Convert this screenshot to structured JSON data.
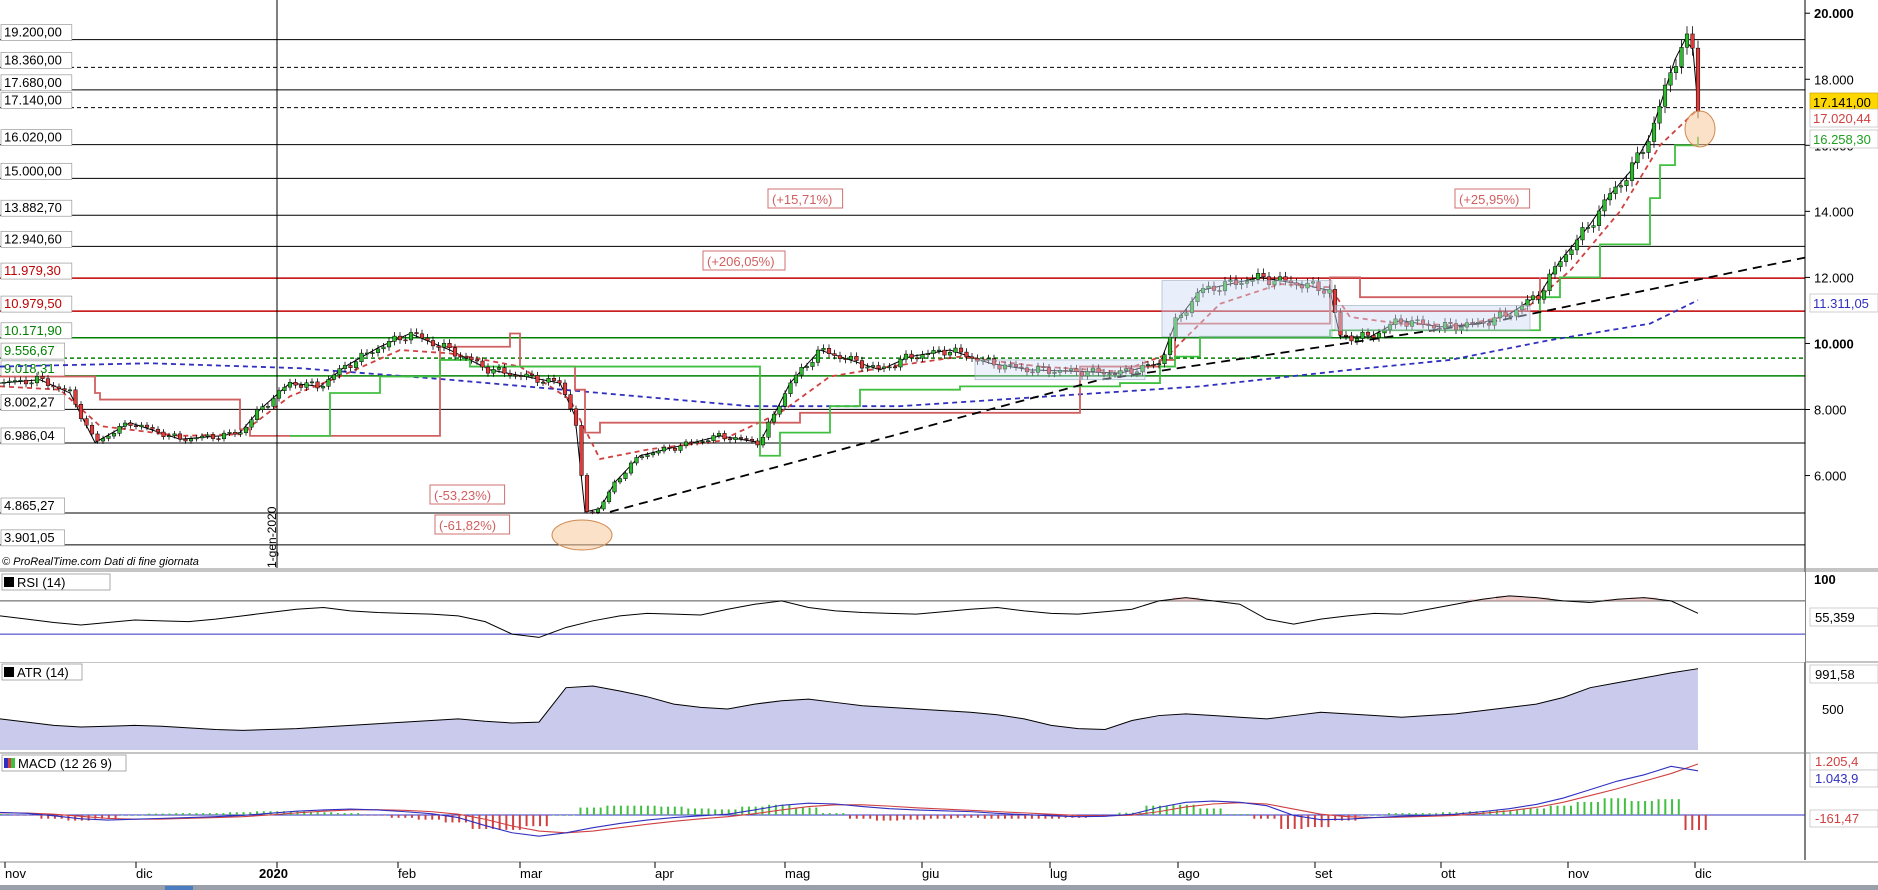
{
  "header": {
    "credit": "© ProRealTime.com  Dati di fine giornata",
    "vertical_date": "1-gen-2020"
  },
  "chart_data": [
    {
      "type": "candlestick",
      "title": "",
      "x_labels": [
        "nov",
        "dic",
        "2020",
        "feb",
        "mar",
        "apr",
        "mag",
        "giu",
        "lug",
        "ago",
        "set",
        "ott",
        "nov",
        "dic"
      ],
      "ylim": [
        3200,
        20400
      ],
      "y_ticks": [
        {
          "value": 20000,
          "label": "20.000",
          "bold": true
        },
        {
          "value": 18000,
          "label": "18.000"
        },
        {
          "value": 16000,
          "label": "16.000"
        },
        {
          "value": 14000,
          "label": "14.000"
        },
        {
          "value": 12000,
          "label": "12.000"
        },
        {
          "value": 10000,
          "label": "10.000",
          "bold": true
        },
        {
          "value": 8000,
          "label": "8.000"
        },
        {
          "value": 6000,
          "label": "6.000"
        }
      ],
      "levels": [
        {
          "value": 19200,
          "label": "19.200,00",
          "color": "#000000",
          "style": "solid"
        },
        {
          "value": 18360,
          "label": "18.360,00",
          "color": "#000000",
          "style": "dashed"
        },
        {
          "value": 17680,
          "label": "17.680,00",
          "color": "#000000",
          "style": "solid"
        },
        {
          "value": 17140,
          "label": "17.140,00",
          "color": "#000000",
          "style": "dashed"
        },
        {
          "value": 16020,
          "label": "16.020,00",
          "color": "#000000",
          "style": "solid"
        },
        {
          "value": 15000,
          "label": "15.000,00",
          "color": "#000000",
          "style": "solid"
        },
        {
          "value": 13882.7,
          "label": "13.882,70",
          "color": "#000000",
          "style": "solid"
        },
        {
          "value": 12940.6,
          "label": "12.940,60",
          "color": "#000000",
          "style": "solid"
        },
        {
          "value": 11979.3,
          "label": "11.979,30",
          "color": "#c00000",
          "style": "solid"
        },
        {
          "value": 10979.5,
          "label": "10.979,50",
          "color": "#c00000",
          "style": "solid"
        },
        {
          "value": 10171.9,
          "label": "10.171,90",
          "color": "#008000",
          "style": "solid"
        },
        {
          "value": 9556.67,
          "label": "9.556,67",
          "color": "#008000",
          "style": "dashed"
        },
        {
          "value": 9018.31,
          "label": "9.018,31",
          "color": "#008000",
          "style": "solid"
        },
        {
          "value": 8002.27,
          "label": "8.002,27",
          "color": "#000000",
          "style": "solid"
        },
        {
          "value": 6986.04,
          "label": "6.986,04",
          "color": "#000000",
          "style": "solid"
        },
        {
          "value": 4865.27,
          "label": "4.865,27",
          "color": "#000000",
          "style": "solid"
        },
        {
          "value": 3901.05,
          "label": "3.901,05",
          "color": "#000000",
          "style": "solid"
        }
      ],
      "price_tags": [
        {
          "value": 17141.0,
          "label": "17.141,00",
          "bg": "#ffd700",
          "color": "#000000"
        },
        {
          "value": 17020.44,
          "label": "17.020,44",
          "bg": "#ffffff",
          "color": "#d04040"
        },
        {
          "value": 16258.3,
          "label": "16.258,30",
          "bg": "#ffffff",
          "color": "#20a020"
        },
        {
          "value": 11311.05,
          "label": "11.311,05",
          "bg": "#ffffff",
          "color": "#3030c0"
        }
      ],
      "annotations": [
        {
          "text": "(+15,71%)",
          "x_label": "apr"
        },
        {
          "text": "(+206,05%)",
          "x_label": "apr"
        },
        {
          "text": "(+25,95%)",
          "x_label": "ott"
        },
        {
          "text": "(-53,23%)",
          "x_label": "feb"
        },
        {
          "text": "(-61,82%)",
          "x_label": "feb"
        }
      ],
      "series": [
        {
          "name": "",
          "kind": "close_path",
          "color": "#000000",
          "points": [
            [
              0,
              8800
            ],
            [
              40,
              8900
            ],
            [
              70,
              8500
            ],
            [
              95,
              7000
            ],
            [
              130,
              7600
            ],
            [
              180,
              7100
            ],
            [
              220,
              7200
            ],
            [
              240,
              7300
            ],
            [
              260,
              8000
            ],
            [
              290,
              8800
            ],
            [
              320,
              8700
            ],
            [
              345,
              9300
            ],
            [
              380,
              9900
            ],
            [
              410,
              10300
            ],
            [
              450,
              9800
            ],
            [
              490,
              9200
            ],
            [
              560,
              8800
            ],
            [
              575,
              7800
            ],
            [
              585,
              4900
            ],
            [
              600,
              5000
            ],
            [
              615,
              5800
            ],
            [
              640,
              6600
            ],
            [
              680,
              6900
            ],
            [
              720,
              7200
            ],
            [
              760,
              7000
            ],
            [
              790,
              8800
            ],
            [
              820,
              9800
            ],
            [
              850,
              9500
            ],
            [
              880,
              9200
            ],
            [
              910,
              9600
            ],
            [
              950,
              9800
            ],
            [
              990,
              9400
            ],
            [
              1030,
              9200
            ],
            [
              1080,
              9150
            ],
            [
              1120,
              9100
            ],
            [
              1160,
              9400
            ],
            [
              1175,
              10600
            ],
            [
              1200,
              11600
            ],
            [
              1230,
              11800
            ],
            [
              1260,
              12000
            ],
            [
              1300,
              11800
            ],
            [
              1330,
              11600
            ],
            [
              1340,
              10200
            ],
            [
              1370,
              10200
            ],
            [
              1400,
              10700
            ],
            [
              1440,
              10500
            ],
            [
              1480,
              10600
            ],
            [
              1510,
              10900
            ],
            [
              1540,
              11500
            ],
            [
              1560,
              12500
            ],
            [
              1590,
              13600
            ],
            [
              1610,
              14500
            ],
            [
              1630,
              15200
            ],
            [
              1650,
              16300
            ],
            [
              1660,
              17200
            ],
            [
              1675,
              18600
            ],
            [
              1685,
              19200
            ],
            [
              1693,
              18900
            ],
            [
              1698,
              17100
            ]
          ]
        },
        {
          "name": "",
          "kind": "short_ma",
          "color": "#d04040",
          "style": "dashed",
          "points": [
            [
              0,
              8700
            ],
            [
              60,
              8600
            ],
            [
              100,
              7500
            ],
            [
              180,
              7200
            ],
            [
              240,
              7250
            ],
            [
              290,
              8400
            ],
            [
              340,
              9000
            ],
            [
              400,
              9800
            ],
            [
              450,
              9700
            ],
            [
              520,
              9300
            ],
            [
              570,
              8300
            ],
            [
              600,
              6500
            ],
            [
              650,
              6800
            ],
            [
              720,
              7050
            ],
            [
              780,
              7900
            ],
            [
              830,
              9000
            ],
            [
              890,
              9300
            ],
            [
              960,
              9600
            ],
            [
              1040,
              9300
            ],
            [
              1120,
              9150
            ],
            [
              1170,
              9700
            ],
            [
              1220,
              11200
            ],
            [
              1280,
              11800
            ],
            [
              1330,
              11700
            ],
            [
              1350,
              10800
            ],
            [
              1400,
              10600
            ],
            [
              1460,
              10550
            ],
            [
              1520,
              10900
            ],
            [
              1570,
              12200
            ],
            [
              1620,
              14000
            ],
            [
              1660,
              16000
            ],
            [
              1698,
              17100
            ]
          ]
        },
        {
          "name": "",
          "kind": "long_ma",
          "color": "#3030c0",
          "style": "dashed",
          "points": [
            [
              0,
              9300
            ],
            [
              150,
              9400
            ],
            [
              300,
              9250
            ],
            [
              450,
              8900
            ],
            [
              600,
              8500
            ],
            [
              750,
              8100
            ],
            [
              900,
              8100
            ],
            [
              1050,
              8400
            ],
            [
              1200,
              8700
            ],
            [
              1350,
              9200
            ],
            [
              1450,
              9500
            ],
            [
              1550,
              10100
            ],
            [
              1650,
              10600
            ],
            [
              1698,
              11311
            ]
          ]
        },
        {
          "name": "",
          "kind": "upper_stop",
          "color": "#d06060",
          "style": "solid",
          "points": [
            [
              0,
              9000
            ],
            [
              95,
              8500
            ],
            [
              100,
              8300
            ],
            [
              240,
              7400
            ],
            [
              250,
              7200
            ],
            [
              440,
              9900
            ],
            [
              510,
              10300
            ],
            [
              520,
              9300
            ],
            [
              575,
              8600
            ],
            [
              585,
              7300
            ],
            [
              600,
              7600
            ],
            [
              770,
              7600
            ],
            [
              800,
              7900
            ],
            [
              1080,
              9300
            ],
            [
              1160,
              9500
            ],
            [
              1175,
              10600
            ],
            [
              1330,
              12000
            ],
            [
              1360,
              11400
            ],
            [
              1500,
              11400
            ],
            [
              1540,
              12000
            ]
          ]
        },
        {
          "name": "",
          "kind": "lower_stop",
          "color": "#40c040",
          "style": "solid",
          "points": [
            [
              290,
              7200
            ],
            [
              330,
              8500
            ],
            [
              380,
              9000
            ],
            [
              440,
              9500
            ],
            [
              470,
              9300
            ],
            [
              760,
              6600
            ],
            [
              780,
              7300
            ],
            [
              830,
              8100
            ],
            [
              860,
              8600
            ],
            [
              960,
              8700
            ],
            [
              1120,
              8800
            ],
            [
              1160,
              9300
            ],
            [
              1175,
              9600
            ],
            [
              1200,
              10200
            ],
            [
              1330,
              10400
            ],
            [
              1500,
              10400
            ],
            [
              1540,
              11400
            ],
            [
              1560,
              12000
            ],
            [
              1600,
              13000
            ],
            [
              1650,
              14400
            ],
            [
              1660,
              15400
            ],
            [
              1675,
              16000
            ],
            [
              1698,
              16258
            ]
          ]
        },
        {
          "name": "",
          "kind": "trendline",
          "color": "#000000",
          "style": "dashed",
          "points": [
            [
              610,
              4900
            ],
            [
              1100,
              8900
            ],
            [
              1500,
              10700
            ],
            [
              1805,
              12600
            ]
          ]
        }
      ]
    },
    {
      "type": "line",
      "title": "RSI (14)",
      "ylim": [
        0,
        100
      ],
      "y_tick_label": "100",
      "last_value_label": "55,359",
      "levels": [
        70,
        30
      ],
      "values": [
        52,
        48,
        44,
        41,
        44,
        47,
        46,
        45,
        48,
        52,
        56,
        60,
        62,
        58,
        56,
        55,
        54,
        52,
        45,
        30,
        26,
        38,
        46,
        52,
        55,
        54,
        53,
        60,
        66,
        70,
        62,
        58,
        56,
        55,
        54,
        57,
        60,
        62,
        58,
        55,
        54,
        57,
        60,
        70,
        74,
        70,
        66,
        48,
        42,
        48,
        52,
        55,
        54,
        60,
        66,
        72,
        76,
        74,
        70,
        68,
        72,
        74,
        70,
        55
      ]
    },
    {
      "type": "area",
      "title": "ATR (14)",
      "y_tick_label": "500",
      "last_value_label": "991,58",
      "values": [
        380,
        340,
        300,
        280,
        290,
        300,
        290,
        270,
        250,
        240,
        250,
        260,
        280,
        300,
        320,
        340,
        360,
        380,
        350,
        330,
        340,
        760,
        780,
        720,
        650,
        560,
        520,
        500,
        560,
        600,
        620,
        580,
        540,
        520,
        500,
        480,
        460,
        430,
        380,
        300,
        260,
        250,
        360,
        420,
        440,
        420,
        400,
        380,
        420,
        460,
        440,
        420,
        400,
        420,
        440,
        480,
        520,
        560,
        640,
        760,
        820,
        880,
        940,
        991.58
      ]
    },
    {
      "type": "macd",
      "title": "MACD (12 26 9)",
      "labels": {
        "signal": "1.205,4",
        "macd": "1.043,9",
        "hist": "-161,47"
      },
      "macd": [
        60,
        40,
        -20,
        -90,
        -120,
        -100,
        -80,
        -60,
        -40,
        -10,
        40,
        90,
        120,
        140,
        120,
        80,
        30,
        -60,
        -250,
        -420,
        -500,
        -420,
        -300,
        -200,
        -120,
        -60,
        -20,
        20,
        120,
        230,
        280,
        260,
        200,
        150,
        120,
        100,
        80,
        40,
        10,
        -20,
        -40,
        -30,
        20,
        180,
        300,
        330,
        300,
        220,
        -10,
        -110,
        -100,
        -60,
        -30,
        -10,
        20,
        80,
        150,
        250,
        400,
        600,
        800,
        950,
        1150,
        1043.9
      ],
      "signal": [
        50,
        45,
        20,
        -30,
        -80,
        -100,
        -95,
        -80,
        -60,
        -40,
        0,
        50,
        90,
        120,
        125,
        110,
        80,
        20,
        -100,
        -260,
        -380,
        -420,
        -380,
        -300,
        -220,
        -150,
        -90,
        -40,
        30,
        120,
        200,
        240,
        240,
        210,
        170,
        140,
        110,
        80,
        50,
        20,
        -10,
        -20,
        -5,
        80,
        190,
        260,
        290,
        260,
        140,
        20,
        -40,
        -60,
        -50,
        -30,
        -10,
        40,
        100,
        180,
        300,
        460,
        620,
        800,
        980,
        1205.4
      ],
      "hist_last": -161.47
    }
  ]
}
